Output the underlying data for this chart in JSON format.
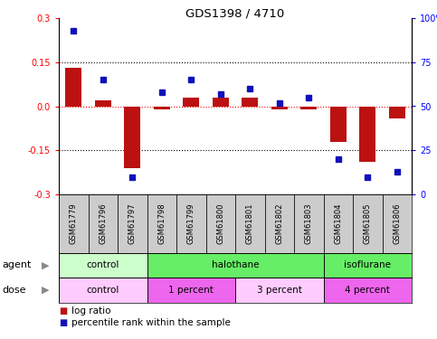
{
  "title": "GDS1398 / 4710",
  "samples": [
    "GSM61779",
    "GSM61796",
    "GSM61797",
    "GSM61798",
    "GSM61799",
    "GSM61800",
    "GSM61801",
    "GSM61802",
    "GSM61803",
    "GSM61804",
    "GSM61805",
    "GSM61806"
  ],
  "log_ratio": [
    0.13,
    0.02,
    -0.21,
    -0.01,
    0.03,
    0.03,
    0.03,
    -0.01,
    -0.01,
    -0.12,
    -0.19,
    -0.04
  ],
  "percentile_rank": [
    93,
    65,
    10,
    58,
    65,
    57,
    60,
    52,
    55,
    20,
    10,
    13
  ],
  "ylim_left": [
    -0.3,
    0.3
  ],
  "ylim_right": [
    0,
    100
  ],
  "yticks_left": [
    -0.3,
    -0.15,
    0.0,
    0.15,
    0.3
  ],
  "yticks_right": [
    0,
    25,
    50,
    75,
    100
  ],
  "hline_y": [
    0.15,
    0.0,
    -0.15
  ],
  "bar_color": "#bb1111",
  "dot_color": "#1111bb",
  "agent_groups": [
    {
      "label": "control",
      "start": 0,
      "end": 3,
      "color": "#ccffcc"
    },
    {
      "label": "halothane",
      "start": 3,
      "end": 9,
      "color": "#66ee66"
    },
    {
      "label": "isoflurane",
      "start": 9,
      "end": 12,
      "color": "#66ee66"
    }
  ],
  "dose_groups": [
    {
      "label": "control",
      "start": 0,
      "end": 3,
      "color": "#ffccff"
    },
    {
      "label": "1 percent",
      "start": 3,
      "end": 6,
      "color": "#ee66ee"
    },
    {
      "label": "3 percent",
      "start": 6,
      "end": 9,
      "color": "#ffccff"
    },
    {
      "label": "4 percent",
      "start": 9,
      "end": 12,
      "color": "#ee66ee"
    }
  ],
  "legend_bar_label": "log ratio",
  "legend_dot_label": "percentile rank within the sample"
}
